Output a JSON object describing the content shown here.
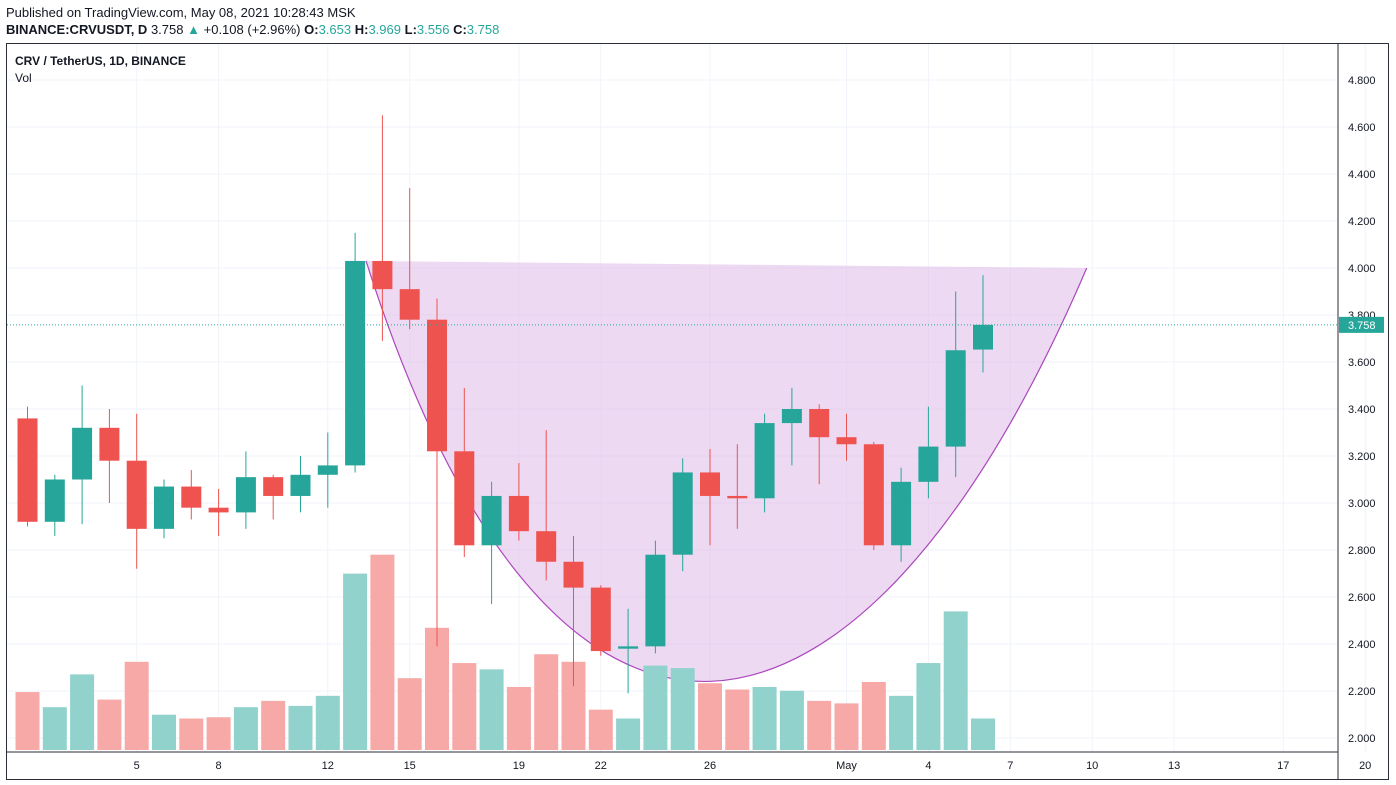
{
  "header": {
    "published": "Published on TradingView.com, May 08, 2021 10:28:43 MSK",
    "symbol": "BINANCE:CRVUSDT, D",
    "last": "3.758",
    "arrow": "▲",
    "change": "+0.108 (+2.96%)",
    "o_label": "O:",
    "o": "3.653",
    "h_label": "H:",
    "h": "3.969",
    "l_label": "L:",
    "l": "3.556",
    "c_label": "C:",
    "c": "3.758"
  },
  "legend": {
    "title": "CRV / TetherUS, 1D, BINANCE",
    "vol": "Vol"
  },
  "colors": {
    "up": "#26a69a",
    "down": "#ef5350",
    "up_vol": "#92d2cc",
    "down_vol": "#f7a9a7",
    "cup": "#e1c0ea",
    "cup_line": "#ab47bc"
  },
  "chart_data": {
    "type": "candlestick",
    "title": "CRV / TetherUS, 1D, BINANCE",
    "y_ticks": [
      "2.000",
      "2.200",
      "2.400",
      "2.600",
      "2.800",
      "3.000",
      "3.200",
      "3.400",
      "3.600",
      "3.800",
      "4.000",
      "4.200",
      "4.400",
      "4.600",
      "4.800"
    ],
    "ylim": [
      1.95,
      4.9
    ],
    "last_price": "3.758",
    "x_ticks": [
      {
        "label": "5",
        "day": 5
      },
      {
        "label": "8",
        "day": 8
      },
      {
        "label": "12",
        "day": 12
      },
      {
        "label": "15",
        "day": 15
      },
      {
        "label": "19",
        "day": 19
      },
      {
        "label": "22",
        "day": 22
      },
      {
        "label": "26",
        "day": 26
      },
      {
        "label": "May",
        "day": 31
      },
      {
        "label": "4",
        "day": 34
      },
      {
        "label": "7",
        "day": 37
      },
      {
        "label": "10",
        "day": 40
      },
      {
        "label": "13",
        "day": 43
      },
      {
        "label": "17",
        "day": 47
      },
      {
        "label": "20",
        "day": 50
      }
    ],
    "candles": [
      {
        "day": 1,
        "o": 3.36,
        "h": 3.41,
        "l": 2.9,
        "c": 2.92,
        "v": 0.46
      },
      {
        "day": 2,
        "o": 2.92,
        "h": 3.12,
        "l": 2.86,
        "c": 3.1,
        "v": 0.34
      },
      {
        "day": 3,
        "o": 3.1,
        "h": 3.5,
        "l": 2.91,
        "c": 3.32,
        "v": 0.6
      },
      {
        "day": 4,
        "o": 3.32,
        "h": 3.4,
        "l": 3.0,
        "c": 3.18,
        "v": 0.4
      },
      {
        "day": 5,
        "o": 3.18,
        "h": 3.38,
        "l": 2.72,
        "c": 2.89,
        "v": 0.7
      },
      {
        "day": 6,
        "o": 2.89,
        "h": 3.1,
        "l": 2.85,
        "c": 3.07,
        "v": 0.28
      },
      {
        "day": 7,
        "o": 3.07,
        "h": 3.14,
        "l": 2.93,
        "c": 2.98,
        "v": 0.25
      },
      {
        "day": 8,
        "o": 2.98,
        "h": 3.06,
        "l": 2.86,
        "c": 2.96,
        "v": 0.26
      },
      {
        "day": 9,
        "o": 2.96,
        "h": 3.22,
        "l": 2.89,
        "c": 3.11,
        "v": 0.34
      },
      {
        "day": 10,
        "o": 3.11,
        "h": 3.12,
        "l": 2.93,
        "c": 3.03,
        "v": 0.39
      },
      {
        "day": 11,
        "o": 3.03,
        "h": 3.2,
        "l": 2.96,
        "c": 3.12,
        "v": 0.35
      },
      {
        "day": 12,
        "o": 3.12,
        "h": 3.3,
        "l": 2.98,
        "c": 3.16,
        "v": 0.43
      },
      {
        "day": 13,
        "o": 3.16,
        "h": 4.15,
        "l": 3.13,
        "c": 4.03,
        "v": 1.4
      },
      {
        "day": 14,
        "o": 4.03,
        "h": 4.65,
        "l": 3.69,
        "c": 3.91,
        "v": 1.55
      },
      {
        "day": 15,
        "o": 3.91,
        "h": 4.34,
        "l": 3.74,
        "c": 3.78,
        "v": 0.57
      },
      {
        "day": 16,
        "o": 3.78,
        "h": 3.87,
        "l": 2.39,
        "c": 3.22,
        "v": 0.97
      },
      {
        "day": 17,
        "o": 3.22,
        "h": 3.49,
        "l": 2.77,
        "c": 2.82,
        "v": 0.69
      },
      {
        "day": 18,
        "o": 2.82,
        "h": 3.09,
        "l": 2.57,
        "c": 3.03,
        "v": 0.64
      },
      {
        "day": 19,
        "o": 3.03,
        "h": 3.17,
        "l": 2.84,
        "c": 2.88,
        "v": 0.5
      },
      {
        "day": 20,
        "o": 2.88,
        "h": 3.31,
        "l": 2.67,
        "c": 2.75,
        "v": 0.76
      },
      {
        "day": 21,
        "o": 2.75,
        "h": 2.86,
        "l": 2.22,
        "c": 2.64,
        "v": 0.7
      },
      {
        "day": 22,
        "o": 2.64,
        "h": 2.65,
        "l": 2.35,
        "c": 2.37,
        "v": 0.32
      },
      {
        "day": 23,
        "o": 2.38,
        "h": 2.55,
        "l": 2.19,
        "c": 2.39,
        "v": 0.25
      },
      {
        "day": 24,
        "o": 2.39,
        "h": 2.84,
        "l": 2.36,
        "c": 2.78,
        "v": 0.67
      },
      {
        "day": 25,
        "o": 2.78,
        "h": 3.19,
        "l": 2.71,
        "c": 3.13,
        "v": 0.65
      },
      {
        "day": 26,
        "o": 3.13,
        "h": 3.23,
        "l": 2.82,
        "c": 3.03,
        "v": 0.53
      },
      {
        "day": 27,
        "o": 3.03,
        "h": 3.25,
        "l": 2.89,
        "c": 3.02,
        "v": 0.48
      },
      {
        "day": 28,
        "o": 3.02,
        "h": 3.38,
        "l": 2.96,
        "c": 3.34,
        "v": 0.5
      },
      {
        "day": 29,
        "o": 3.34,
        "h": 3.49,
        "l": 3.16,
        "c": 3.4,
        "v": 0.47
      },
      {
        "day": 30,
        "o": 3.4,
        "h": 3.42,
        "l": 3.08,
        "c": 3.28,
        "v": 0.39
      },
      {
        "day": 31,
        "o": 3.28,
        "h": 3.38,
        "l": 3.18,
        "c": 3.25,
        "v": 0.37
      },
      {
        "day": 32,
        "o": 3.25,
        "h": 3.26,
        "l": 2.8,
        "c": 2.82,
        "v": 0.54
      },
      {
        "day": 33,
        "o": 2.82,
        "h": 3.15,
        "l": 2.75,
        "c": 3.09,
        "v": 0.43
      },
      {
        "day": 34,
        "o": 3.09,
        "h": 3.41,
        "l": 3.02,
        "c": 3.24,
        "v": 0.69
      },
      {
        "day": 35,
        "o": 3.24,
        "h": 3.9,
        "l": 3.11,
        "c": 3.65,
        "v": 1.1
      },
      {
        "day": 36,
        "o": 3.653,
        "h": 3.969,
        "l": 3.556,
        "c": 3.758,
        "v": 0.25
      }
    ]
  }
}
